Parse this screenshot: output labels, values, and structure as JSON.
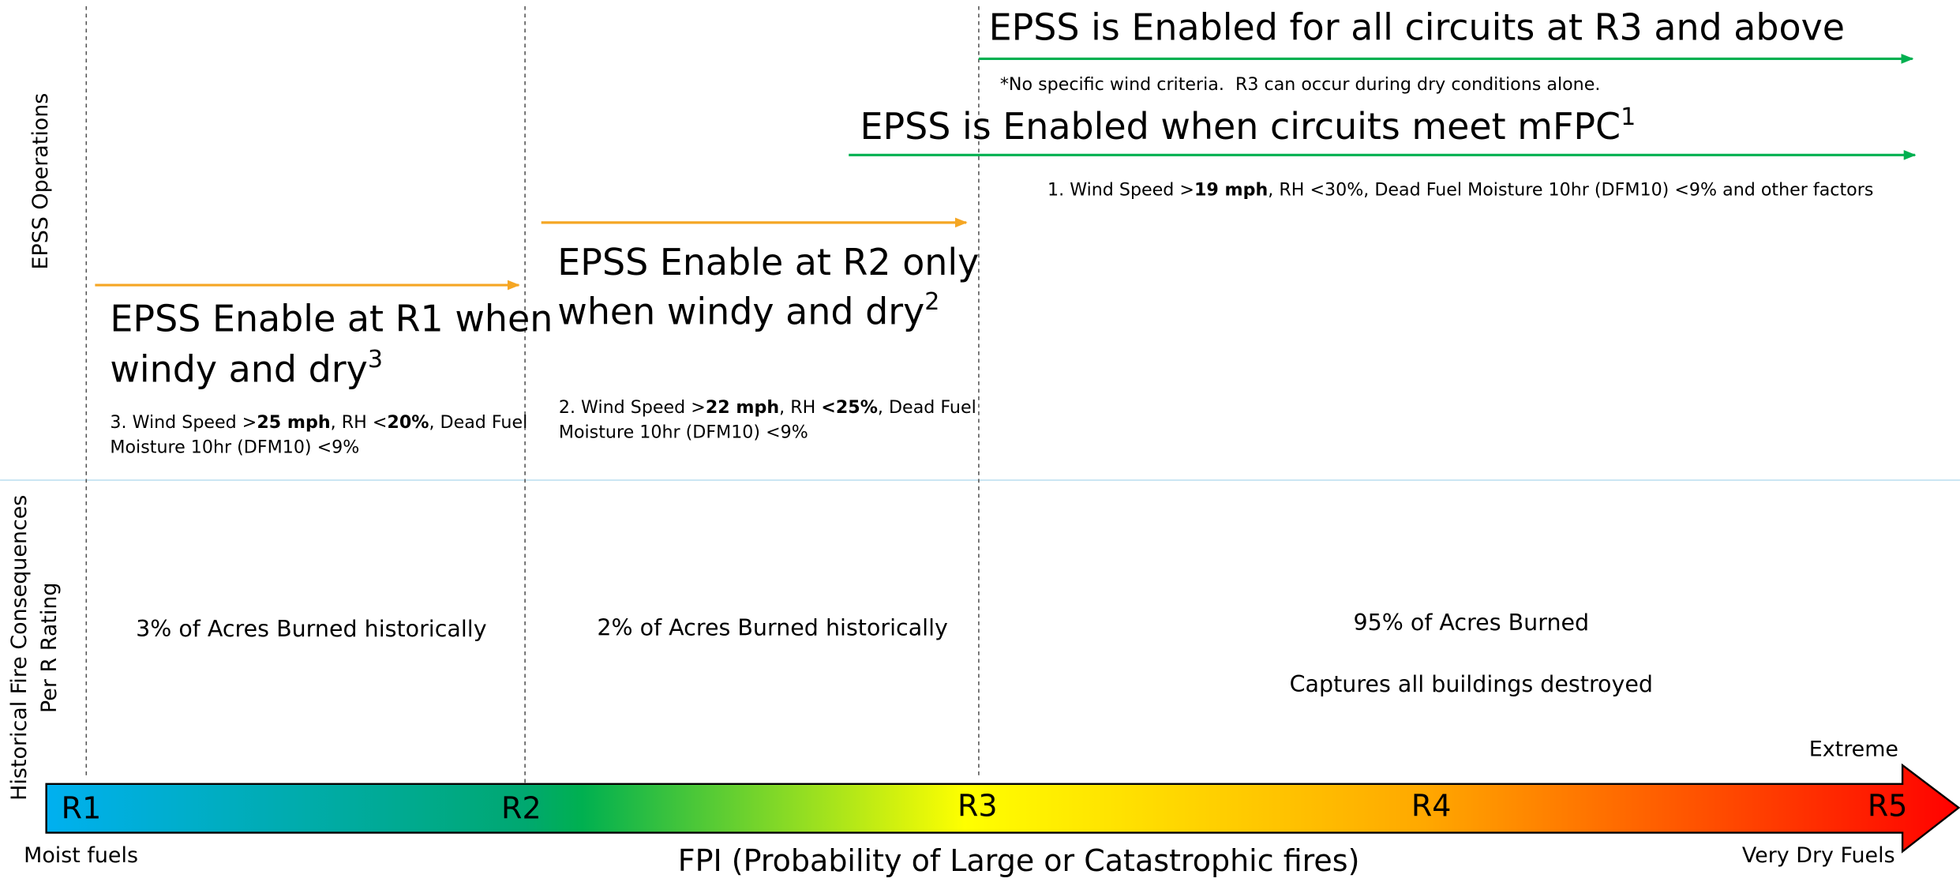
{
  "row_labels": {
    "operations": "EPSS Operations",
    "consequences": [
      "Historical Fire Consequences",
      "Per R Rating"
    ]
  },
  "operations": [
    {
      "title": [
        "EPSS is Enabled for all circuits at R3 and above"
      ],
      "note": [
        [
          "*No specific wind criteria.  R3 can occur during dry conditions alone."
        ]
      ]
    },
    {
      "title": [
        "EPSS is Enabled when circuits meet mFPC"
      ],
      "superscript": "1",
      "note": [
        [
          "1. Wind Speed >",
          "19 mph",
          ", RH <30%, Dead Fuel Moisture 10hr (DFM10) <9% and other factors"
        ]
      ]
    },
    {
      "title": [
        "EPSS Enable at R2 only",
        "when windy and dry"
      ],
      "superscript": "2",
      "note": [
        [
          "2. Wind Speed >",
          "22 mph",
          ", RH ",
          "<25%",
          ", Dead Fuel"
        ],
        [
          "Moisture 10hr (DFM10) <9%"
        ]
      ]
    },
    {
      "title": [
        "EPSS Enable at R1 when",
        "windy and dry"
      ],
      "superscript": "3",
      "note": [
        [
          "3. Wind Speed >",
          "25 mph",
          ", RH <",
          "20%",
          ", Dead Fuel"
        ],
        [
          "Moisture 10hr (DFM10) <9%"
        ]
      ]
    }
  ],
  "consequences": [
    "3% of Acres Burned historically",
    "2% of Acres Burned historically",
    "95% of Acres Burned",
    "Captures all buildings destroyed"
  ],
  "scale": {
    "ratings": [
      "R1",
      "R2",
      "R3",
      "R4",
      "R5"
    ],
    "title": "FPI (Probability of Large or Catastrophic fires)",
    "low_label": "Moist fuels",
    "high_label": "Very Dry Fuels",
    "extreme_label": "Extreme"
  }
}
